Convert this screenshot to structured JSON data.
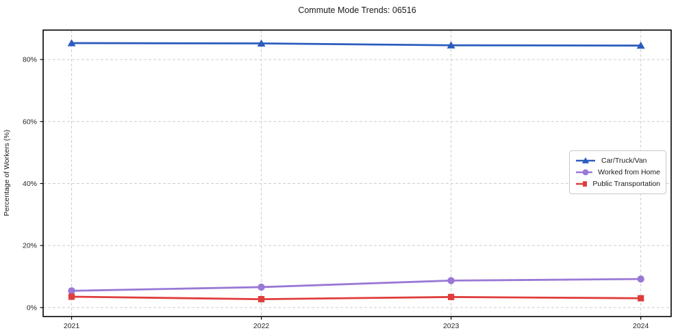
{
  "figure": {
    "title": "Commute Mode Trends: 06516",
    "ylabel": "Percentage of Workers (%)"
  },
  "colors": {
    "grid": "#cccccc",
    "spine": "#000000",
    "tick_text": "#262626",
    "background": "#ffffff",
    "legend_border": "#c8c8c8"
  },
  "chart_data": {
    "type": "line",
    "title": "Commute Mode Trends: 06516",
    "xlabel": "",
    "ylabel": "Percentage of Workers (%)",
    "x": [
      2021,
      2022,
      2023,
      2024
    ],
    "x_tick_labels": [
      "2021",
      "2022",
      "2023",
      "2024"
    ],
    "y_ticks": [
      0,
      20,
      40,
      60,
      80
    ],
    "y_tick_suffix": "%",
    "xlim": [
      2020.85,
      2024.16
    ],
    "ylim": [
      -2.9,
      89.5
    ],
    "grid": true,
    "grid_style": "dashed",
    "legend_position": "center right",
    "series": [
      {
        "name": "Car/Truck/Van",
        "marker": "triangle",
        "color": "#2b5cbe",
        "values": [
          85.3,
          85.2,
          84.6,
          84.5
        ]
      },
      {
        "name": "Worked from Home",
        "marker": "circle",
        "color": "#9a78d6",
        "values": [
          5.4,
          6.6,
          8.7,
          9.2
        ]
      },
      {
        "name": "Public Transportation",
        "marker": "square",
        "color": "#e03c3c",
        "values": [
          3.5,
          2.7,
          3.4,
          3.0
        ]
      }
    ]
  }
}
